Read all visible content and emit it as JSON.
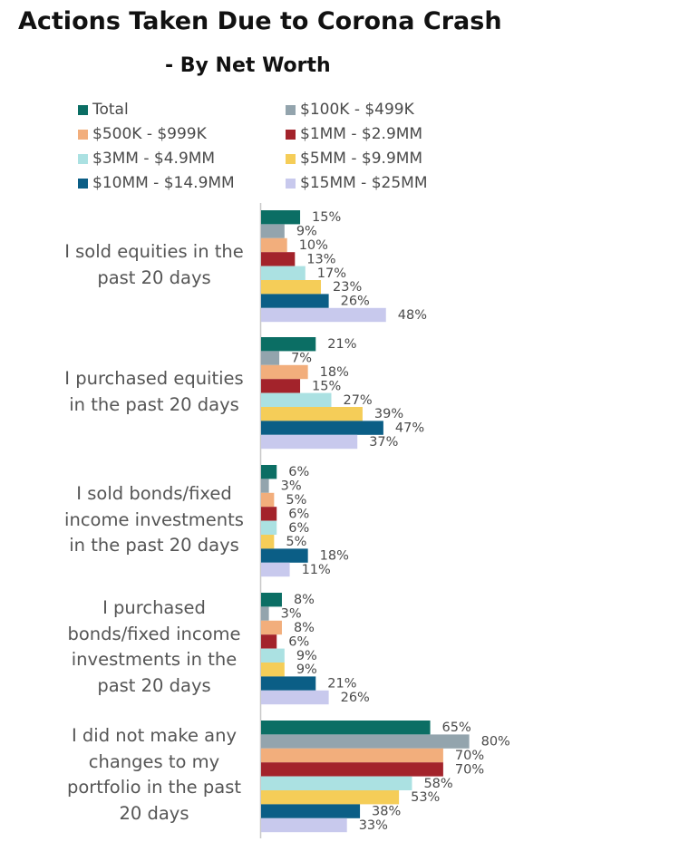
{
  "chart_data": {
    "type": "bar",
    "orientation": "horizontal",
    "title": "Actions Taken Due to Corona Crash",
    "subtitle": "- By Net Worth",
    "categories": [
      "I sold equities in the\npast 20 days",
      "I purchased equities\nin the past 20 days",
      "I sold bonds/fixed\nincome investments\nin the past 20 days",
      "I purchased\nbonds/fixed income\ninvestments in the\npast 20 days",
      "I did not make any\nchanges to my\nportfolio in the past\n20 days"
    ],
    "series": [
      {
        "name": "Total",
        "color": "#0b6e64",
        "values": [
          15,
          21,
          6,
          8,
          65
        ],
        "labels": [
          "15%",
          "21%",
          "6%",
          "8%",
          "65%"
        ]
      },
      {
        "name": "$100K - $499K",
        "color": "#93a4ad",
        "values": [
          9,
          7,
          3,
          3,
          80
        ],
        "labels": [
          "9%",
          "7%",
          "3%",
          "3%",
          "80%"
        ]
      },
      {
        "name": "$500K - $999K",
        "color": "#f2ae7c",
        "values": [
          10,
          18,
          5,
          8,
          70
        ],
        "labels": [
          "10%",
          "18%",
          "5%",
          "8%",
          "70%"
        ]
      },
      {
        "name": "$1MM - $2.9MM",
        "color": "#a3232b",
        "values": [
          13,
          15,
          6,
          6,
          70
        ],
        "labels": [
          "13%",
          "15%",
          "6%",
          "6%",
          "70%"
        ]
      },
      {
        "name": "$3MM - $4.9MM",
        "color": "#abe1e2",
        "values": [
          17,
          27,
          6,
          9,
          58
        ],
        "labels": [
          "17%",
          "27%",
          "6%",
          "9%",
          "58%"
        ]
      },
      {
        "name": "$5MM - $9.9MM",
        "color": "#f5cd58",
        "values": [
          23,
          39,
          5,
          9,
          53
        ],
        "labels": [
          "23%",
          "39%",
          "5%",
          "9%",
          "53%"
        ]
      },
      {
        "name": "$10MM - $14.9MM",
        "color": "#0b5e86",
        "values": [
          26,
          47,
          18,
          21,
          38
        ],
        "labels": [
          "26%",
          "47%",
          "18%",
          "21%",
          "38%"
        ]
      },
      {
        "name": "$15MM - $25MM",
        "color": "#c8c9ed",
        "values": [
          48,
          37,
          11,
          26,
          33
        ],
        "labels": [
          "48%",
          "37%",
          "11%",
          "26%",
          "33%"
        ]
      }
    ],
    "xlim": [
      0,
      100
    ],
    "grid": false,
    "legend_position": "top"
  }
}
